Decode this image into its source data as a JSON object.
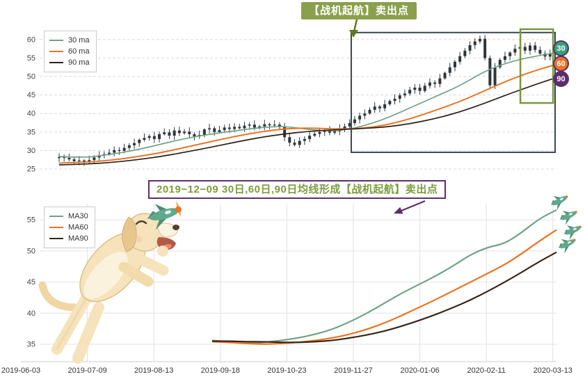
{
  "colors": {
    "ma30": "#6fa287",
    "ma60": "#e87424",
    "ma90_top": "#2e1f16",
    "ma90_bottom": "#3a2517",
    "candle": "#2f363b",
    "grid": "#d9d9d9",
    "axis_text": "#444444",
    "callout_green_bg": "#8aa04d",
    "callout_green_arrow": "#5c7a22",
    "purple": "#5c2d6e",
    "olive_text": "#7d9c40",
    "box_dark": "#3a4750",
    "box_green": "#7a9440",
    "plane": "#5fa98c",
    "plane_dark": "#4c8f74"
  },
  "top_callout": {
    "text": "【战机起航】卖出点"
  },
  "bottom_callout": {
    "text": "2019−12−09 30日,60日,90日均线形成【战机起航】卖出点"
  },
  "badges": [
    {
      "label": "30",
      "bg": "#35a07c"
    },
    {
      "label": "60",
      "bg": "#e87424"
    },
    {
      "label": "90",
      "bg": "#5c2d6e"
    }
  ],
  "top_legend": {
    "items": [
      {
        "label": "30 ma"
      },
      {
        "label": "60 ma"
      },
      {
        "label": "90 ma"
      }
    ]
  },
  "bottom_legend": {
    "items": [
      {
        "label": "MA30"
      },
      {
        "label": "MA60"
      },
      {
        "label": "MA90"
      }
    ]
  },
  "illustrations": {
    "dog": "jumping-labrador-puppy-catching-toy-plane",
    "planes": "green-toy-airplanes-at-line-ends"
  },
  "chart_data": [
    {
      "type": "candlestick",
      "title": "daily price with 30/60/90-day moving averages",
      "legend_position": "top-left",
      "grid": "horizontal-dashed",
      "ylim": [
        23.3,
        62.8
      ],
      "yticks": [
        25,
        30,
        35,
        40,
        45,
        50,
        55,
        60
      ],
      "x_tick_labels": [
        "2019-06-03",
        "2019-07-09",
        "2019-08-13",
        "2019-09-18",
        "2019-10-23",
        "2019-11-27",
        "2020-01-06",
        "2020-02-11",
        "2020-03-13"
      ],
      "closes": [
        28.2,
        28.0,
        27.6,
        27.1,
        27.3,
        26.8,
        27.4,
        28.1,
        28.7,
        29.0,
        29.4,
        30.1,
        29.9,
        30.7,
        31.4,
        32.0,
        32.9,
        33.4,
        33.9,
        33.1,
        34.4,
        34.9,
        34.0,
        35.4,
        34.7,
        35.1,
        34.4,
        33.8,
        34.2,
        35.7,
        36.0,
        35.0,
        35.5,
        36.2,
        35.8,
        36.4,
        36.0,
        36.7,
        37.0,
        36.2,
        36.5,
        37.1,
        36.8,
        37.0,
        36.4,
        33.6,
        32.1,
        31.5,
        32.6,
        33.1,
        34.0,
        34.5,
        35.0,
        35.4,
        34.8,
        35.2,
        36.0,
        36.5,
        37.4,
        38.4,
        39.4,
        40.0,
        41.0,
        41.9,
        41.4,
        42.5,
        43.4,
        44.0,
        44.9,
        45.4,
        46.4,
        47.0,
        46.1,
        47.5,
        48.4,
        48.0,
        49.5,
        51.0,
        52.5,
        54.0,
        55.5,
        57.0,
        58.5,
        59.5,
        60.2,
        55.0,
        47.6,
        52.5,
        54.5,
        55.5,
        56.5,
        57.5,
        58.0,
        57.0,
        58.4,
        57.2,
        56.2,
        55.4,
        56.2,
        56.8
      ],
      "sample_stride": 5,
      "series": [
        {
          "name": "30 ma",
          "color": "#6fa287",
          "values": [
            28.4,
            28.0,
            28.9,
            30.0,
            31.6,
            33.2,
            34.4,
            35.3,
            36.2,
            36.6,
            35.6,
            35.2,
            36.3,
            38.5,
            41.5,
            44.5,
            47.5,
            51.5,
            54.0,
            55.5,
            56.4
          ]
        },
        {
          "name": "60 ma",
          "color": "#e87424",
          "values": [
            26.6,
            26.8,
            27.3,
            28.2,
            29.3,
            30.8,
            32.3,
            33.8,
            35.0,
            35.9,
            36.1,
            35.8,
            35.9,
            36.8,
            38.5,
            40.8,
            43.2,
            46.2,
            49.2,
            51.6,
            53.2
          ]
        },
        {
          "name": "90 ma",
          "color": "#2e1f16",
          "values": [
            26.1,
            26.3,
            26.7,
            27.4,
            28.3,
            29.5,
            30.8,
            32.2,
            33.5,
            34.5,
            35.2,
            35.6,
            35.9,
            36.3,
            37.2,
            38.6,
            40.4,
            42.8,
            45.4,
            47.8,
            49.6
          ]
        }
      ],
      "annotations": {
        "dark_box": {
          "x0": 0.589,
          "x1": 1.0,
          "v0": 29.5,
          "v1": 61.9
        },
        "green_box": {
          "x0": 0.93,
          "x1": 0.996,
          "v0": 42.85,
          "v1": 62.8
        }
      }
    },
    {
      "type": "line",
      "title": "MA30 / MA60 / MA90 detail",
      "legend_position": "top-left",
      "grid": "both",
      "ylim": [
        32.2,
        57.6
      ],
      "yticks": [
        35,
        40,
        45,
        50,
        55
      ],
      "x_start_fraction": 0.334,
      "series": [
        {
          "name": "MA30",
          "color": "#6fa287",
          "values": [
            35.6,
            35.4,
            35.2,
            35.3,
            35.6,
            36.0,
            36.6,
            37.4,
            38.6,
            40.0,
            41.6,
            43.2,
            44.6,
            46.0,
            47.6,
            49.4,
            50.6,
            51.2,
            53.0,
            55.2,
            56.6
          ]
        },
        {
          "name": "MA60",
          "color": "#e87424",
          "values": [
            35.4,
            35.3,
            35.1,
            35.0,
            35.1,
            35.3,
            35.6,
            36.0,
            36.6,
            37.4,
            38.4,
            39.6,
            40.9,
            42.2,
            43.6,
            45.0,
            46.4,
            47.8,
            49.6,
            51.6,
            53.4
          ]
        },
        {
          "name": "MA90",
          "color": "#3a2517",
          "values": [
            35.5,
            35.5,
            35.4,
            35.4,
            35.3,
            35.3,
            35.4,
            35.6,
            36.0,
            36.5,
            37.1,
            37.9,
            38.8,
            39.8,
            40.9,
            42.1,
            43.5,
            45.0,
            46.6,
            48.3,
            49.8
          ]
        }
      ]
    }
  ]
}
